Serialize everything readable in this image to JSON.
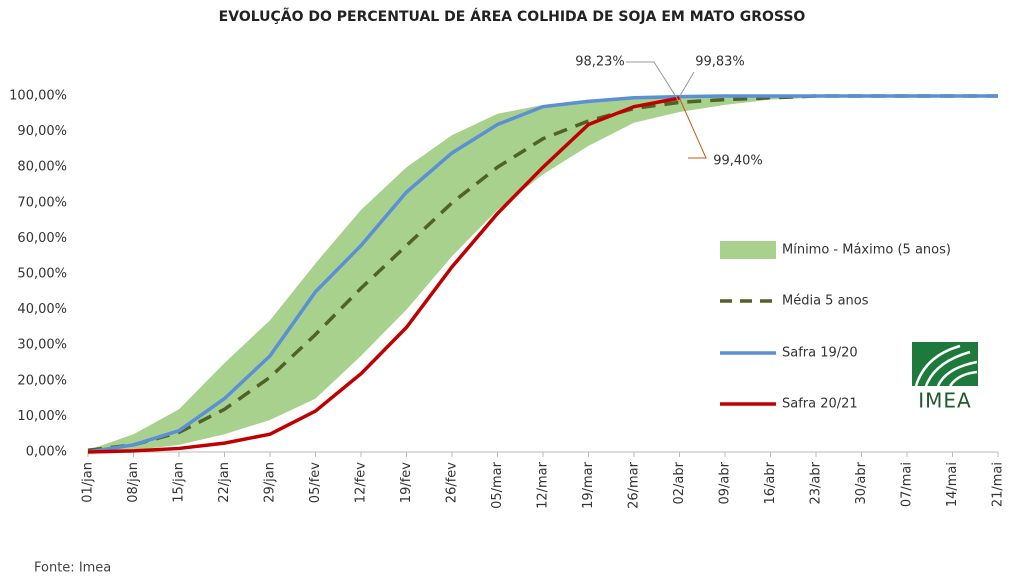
{
  "chart_data": {
    "type": "line",
    "title": "EVOLUÇÃO DO PERCENTUAL DE ÁREA COLHIDA DE SOJA EM MATO GROSSO",
    "categories": [
      "01/jan",
      "08/jan",
      "15/jan",
      "22/jan",
      "29/jan",
      "05/fev",
      "12/fev",
      "19/fev",
      "26/fev",
      "05/mar",
      "12/mar",
      "19/mar",
      "26/mar",
      "02/abr",
      "09/abr",
      "16/abr",
      "23/abr",
      "30/abr",
      "07/mai",
      "14/mai",
      "21/mai"
    ],
    "series": [
      {
        "name": "Mínimo - Máximo (5 anos)",
        "color": "#a9d18e",
        "style": "band",
        "low": [
          0,
          0.5,
          2,
          5,
          9,
          15,
          27,
          40,
          55,
          68,
          78,
          86,
          92.5,
          95.5,
          97.5,
          99,
          99.5,
          100,
          100,
          100,
          100
        ],
        "high": [
          0.5,
          5,
          12,
          25,
          37,
          53,
          68,
          80,
          89,
          95,
          97.5,
          99,
          99.5,
          100,
          100,
          100,
          100,
          100,
          100,
          100,
          100
        ]
      },
      {
        "name": "Média 5 anos",
        "color": "#4f6228",
        "style": "dashed",
        "values": [
          0.5,
          2,
          5.5,
          12,
          21,
          33,
          46,
          58,
          70,
          80,
          88,
          93,
          96.5,
          98.23,
          99,
          99.5,
          100,
          100,
          100,
          100,
          100
        ],
        "value_labels": [
          null,
          null,
          null,
          null,
          null,
          null,
          null,
          null,
          null,
          null,
          null,
          null,
          null,
          "98,23%",
          null,
          null,
          null,
          null,
          null,
          null,
          null
        ]
      },
      {
        "name": "Safra 19/20",
        "color": "#5b8fd6",
        "style": "solid",
        "values": [
          0,
          2,
          6,
          15,
          27,
          45,
          58,
          73,
          84,
          92,
          97,
          98.5,
          99.5,
          99.83,
          100,
          100,
          100,
          100,
          100,
          100,
          100
        ],
        "value_labels": [
          null,
          null,
          null,
          null,
          null,
          null,
          null,
          null,
          null,
          null,
          null,
          null,
          null,
          "99,83%",
          null,
          null,
          null,
          null,
          null,
          null,
          null
        ]
      },
      {
        "name": "Safra 20/21",
        "color": "#c00000",
        "style": "solid",
        "values": [
          0,
          0.3,
          1,
          2.5,
          5,
          11.5,
          22,
          35,
          52,
          67,
          80,
          92,
          97,
          99.4,
          null,
          null,
          null,
          null,
          null,
          null,
          null
        ],
        "value_labels": [
          null,
          null,
          null,
          null,
          null,
          null,
          null,
          null,
          null,
          null,
          null,
          null,
          null,
          "99,40%",
          null,
          null,
          null,
          null,
          null,
          null,
          null
        ]
      }
    ],
    "ylim": [
      0,
      100
    ],
    "yticks": [
      {
        "value": 0,
        "label": "0,00%"
      },
      {
        "value": 10,
        "label": "10,00%"
      },
      {
        "value": 20,
        "label": "20,00%"
      },
      {
        "value": 30,
        "label": "30,00%"
      },
      {
        "value": 40,
        "label": "40,00%"
      },
      {
        "value": 50,
        "label": "50,00%"
      },
      {
        "value": 60,
        "label": "60,00%"
      },
      {
        "value": 70,
        "label": "70,00%"
      },
      {
        "value": 80,
        "label": "80,00%"
      },
      {
        "value": 90,
        "label": "90,00%"
      },
      {
        "value": 100,
        "label": "100,00%"
      }
    ],
    "grid": false,
    "legend": "right",
    "logo": "IMEA",
    "source": "Fonte: Imea"
  }
}
